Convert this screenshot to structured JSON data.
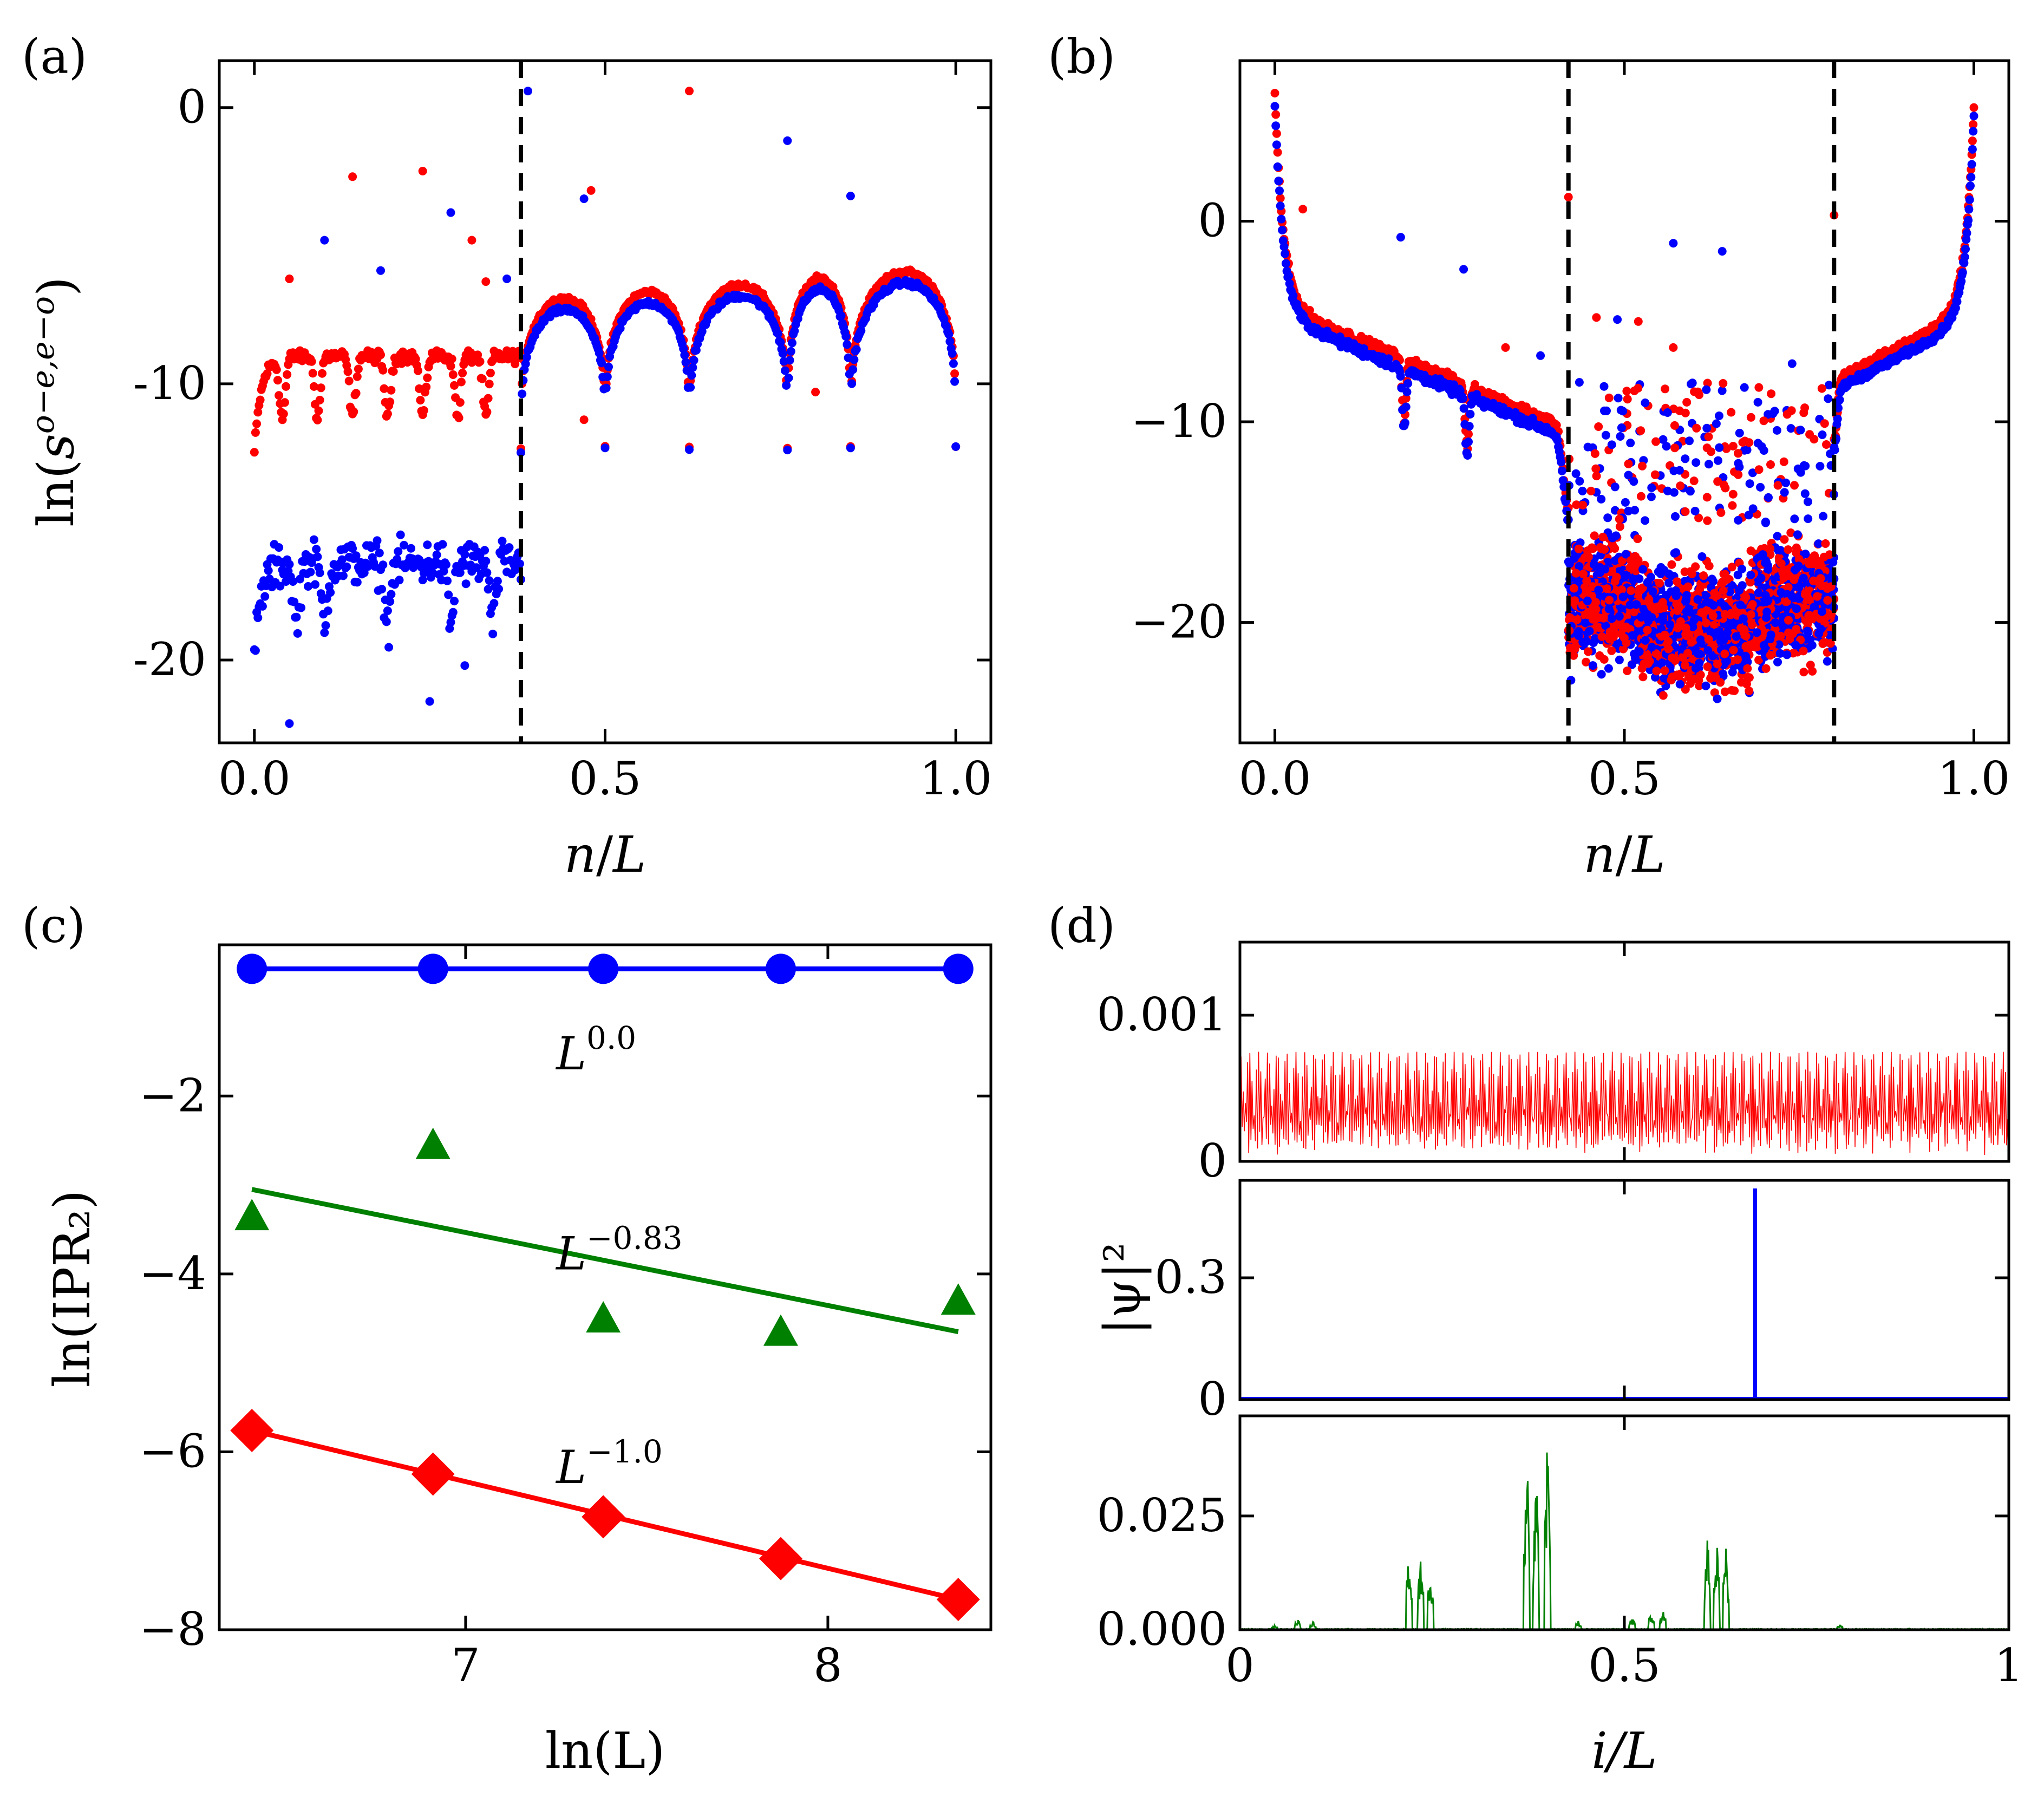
{
  "chart_data": [
    {
      "id": "a",
      "panel_label": "(a)",
      "type": "scatter",
      "xlabel_var": "n",
      "xlabel_den": "L",
      "ylabel_pre": "ln(",
      "ylabel_base": "s",
      "ylabel_sup": "o−e,e−o",
      "ylabel_post": ")",
      "xlim": [
        -0.05,
        1.05
      ],
      "ylim": [
        -23,
        1.7
      ],
      "xticks": [
        0.0,
        0.5,
        1.0
      ],
      "xtick_labels": [
        "0.0",
        "0.5",
        "1.0"
      ],
      "yticks": [
        0,
        -10,
        -20
      ],
      "ytick_labels": [
        "0",
        "-10",
        "-20"
      ],
      "vlines": [
        0.38
      ],
      "colors": {
        "red": "#ff0000",
        "blue": "#0000ff"
      },
      "series": [
        {
          "color": "red",
          "bands": [
            {
              "x0": 0.0,
              "x1": 0.38,
              "level": -9.0,
              "dips": [
                0.04,
                0.09,
                0.14,
                0.19,
                0.24,
                0.29,
                0.33
              ],
              "noise": 0.35
            },
            {
              "x0": 0.38,
              "x1": 1.0,
              "level": -7.0,
              "dips": [
                0.5,
                0.62,
                0.76,
                0.85
              ],
              "noise": 0.15
            }
          ]
        },
        {
          "color": "blue",
          "bands": [
            {
              "x0": 0.0,
              "x1": 0.38,
              "level": -16.5,
              "dips": [
                0.06,
                0.1,
                0.19,
                0.28,
                0.34
              ],
              "noise": 1.2
            },
            {
              "x0": 0.38,
              "x1": 1.0,
              "level": -7.4,
              "dips": [
                0.5,
                0.62,
                0.76,
                0.85
              ],
              "noise": 0.15
            }
          ]
        }
      ],
      "outliers_red": [
        [
          0.14,
          -2.5
        ],
        [
          0.24,
          -2.3
        ],
        [
          0.31,
          -4.8
        ],
        [
          0.62,
          0.6
        ],
        [
          0.48,
          -3.0
        ],
        [
          0.05,
          -6.2
        ],
        [
          0.33,
          -6.3
        ],
        [
          0.8,
          -10.3
        ],
        [
          0.47,
          -11.3
        ]
      ],
      "outliers_blue": [
        [
          0.1,
          -4.8
        ],
        [
          0.18,
          -5.9
        ],
        [
          0.28,
          -3.8
        ],
        [
          0.36,
          -6.2
        ],
        [
          0.39,
          0.6
        ],
        [
          0.76,
          -1.2
        ],
        [
          0.85,
          -3.2
        ],
        [
          0.47,
          -3.3
        ],
        [
          0.3,
          -20.2
        ],
        [
          0.25,
          -21.5
        ],
        [
          0.05,
          -22.3
        ]
      ]
    },
    {
      "id": "b",
      "panel_label": "(b)",
      "type": "scatter",
      "xlabel_var": "n",
      "xlabel_den": "L",
      "xlim": [
        -0.05,
        1.05
      ],
      "ylim": [
        -26,
        8
      ],
      "xticks": [
        0.0,
        0.5,
        1.0
      ],
      "xtick_labels": [
        "0.0",
        "0.5",
        "1.0"
      ],
      "yticks": [
        0,
        -10,
        -20
      ],
      "ytick_labels": [
        "0",
        "−10",
        "−20"
      ],
      "vlines": [
        0.42,
        0.8
      ],
      "colors": {
        "red": "#ff0000",
        "blue": "#0000ff"
      },
      "outliers_red": [
        [
          0.04,
          0.6
        ],
        [
          0.42,
          1.2
        ],
        [
          0.8,
          0.3
        ],
        [
          0.46,
          -4.8
        ],
        [
          0.52,
          -5.0
        ],
        [
          0.57,
          -6.3
        ],
        [
          0.33,
          -6.3
        ],
        [
          0.6,
          -8.5
        ],
        [
          0.71,
          -8.6
        ]
      ],
      "outliers_blue": [
        [
          0.18,
          -0.8
        ],
        [
          0.27,
          -2.4
        ],
        [
          0.57,
          -1.1
        ],
        [
          0.64,
          -1.5
        ],
        [
          0.49,
          -4.9
        ],
        [
          0.74,
          -7.1
        ],
        [
          0.38,
          -6.7
        ]
      ]
    },
    {
      "id": "c",
      "panel_label": "(c)",
      "type": "line",
      "xlabel": "ln(L)",
      "ylabel": "ln(IPR₂)",
      "xlim": [
        6.32,
        8.45
      ],
      "ylim": [
        -8.0,
        -0.3
      ],
      "xticks": [
        7,
        8
      ],
      "xtick_labels": [
        "7",
        "8"
      ],
      "yticks": [
        -2,
        -4,
        -6,
        -8
      ],
      "ytick_labels": [
        "−2",
        "−4",
        "−6",
        "−8"
      ],
      "x": [
        6.41,
        6.91,
        7.38,
        7.87,
        8.36
      ],
      "series": [
        {
          "color": "#0000ff",
          "marker": "circle",
          "values": [
            -0.57,
            -0.57,
            -0.57,
            -0.57,
            -0.57
          ],
          "fit": [
            -0.57,
            -0.57
          ],
          "annotation": "L",
          "exponent": "0.0",
          "annot_pos": [
            7.25,
            -1.7
          ]
        },
        {
          "color": "#008000",
          "marker": "triangle",
          "values": [
            -3.35,
            -2.55,
            -4.5,
            -4.65,
            -4.3
          ],
          "fit": [
            -3.05,
            -4.65
          ],
          "annotation": "L",
          "exponent": "−0.83",
          "annot_pos": [
            7.25,
            -3.95
          ]
        },
        {
          "color": "#ff0000",
          "marker": "diamond",
          "values": [
            -5.76,
            -6.25,
            -6.73,
            -7.2,
            -7.66
          ],
          "fit": [
            -5.76,
            -7.66
          ],
          "annotation": "L",
          "exponent": "−1.0",
          "annot_pos": [
            7.25,
            -6.35
          ]
        }
      ]
    },
    {
      "id": "d",
      "panel_label": "(d)",
      "type": "line",
      "xlabel": "i/L",
      "ylabel": "|ψ|²",
      "xlim": [
        0,
        1
      ],
      "xticks": [
        0,
        0.5,
        1
      ],
      "xtick_labels": [
        "0",
        "0.5",
        "1"
      ],
      "subplots": [
        {
          "color": "#ff0000",
          "ylim": [
            0,
            0.0015
          ],
          "yticks": [
            0,
            0.001
          ],
          "ytick_labels": [
            "0",
            "0.001"
          ],
          "kind": "extended",
          "peak": 0.00075
        },
        {
          "color": "#0000ff",
          "ylim": [
            0,
            0.54
          ],
          "yticks": [
            0,
            0.3
          ],
          "ytick_labels": [
            "0",
            "0.3"
          ],
          "kind": "localized",
          "spike_x": 0.67,
          "spike_y": 0.52
        },
        {
          "color": "#008000",
          "ylim": [
            0,
            0.047
          ],
          "yticks": [
            0.0,
            0.025
          ],
          "ytick_labels": [
            "0.000",
            "0.025"
          ],
          "kind": "critical",
          "peaks": [
            [
              0.045,
              0.001
            ],
            [
              0.075,
              0.0025
            ],
            [
              0.095,
              0.002
            ],
            [
              0.22,
              0.018
            ],
            [
              0.235,
              0.016
            ],
            [
              0.248,
              0.015
            ],
            [
              0.373,
              0.04
            ],
            [
              0.385,
              0.038
            ],
            [
              0.4,
              0.043
            ],
            [
              0.44,
              0.002
            ],
            [
              0.51,
              0.003
            ],
            [
              0.535,
              0.004
            ],
            [
              0.55,
              0.0045
            ],
            [
              0.608,
              0.021
            ],
            [
              0.62,
              0.02
            ],
            [
              0.632,
              0.019
            ],
            [
              0.78,
              0.0012
            ]
          ]
        }
      ]
    }
  ]
}
